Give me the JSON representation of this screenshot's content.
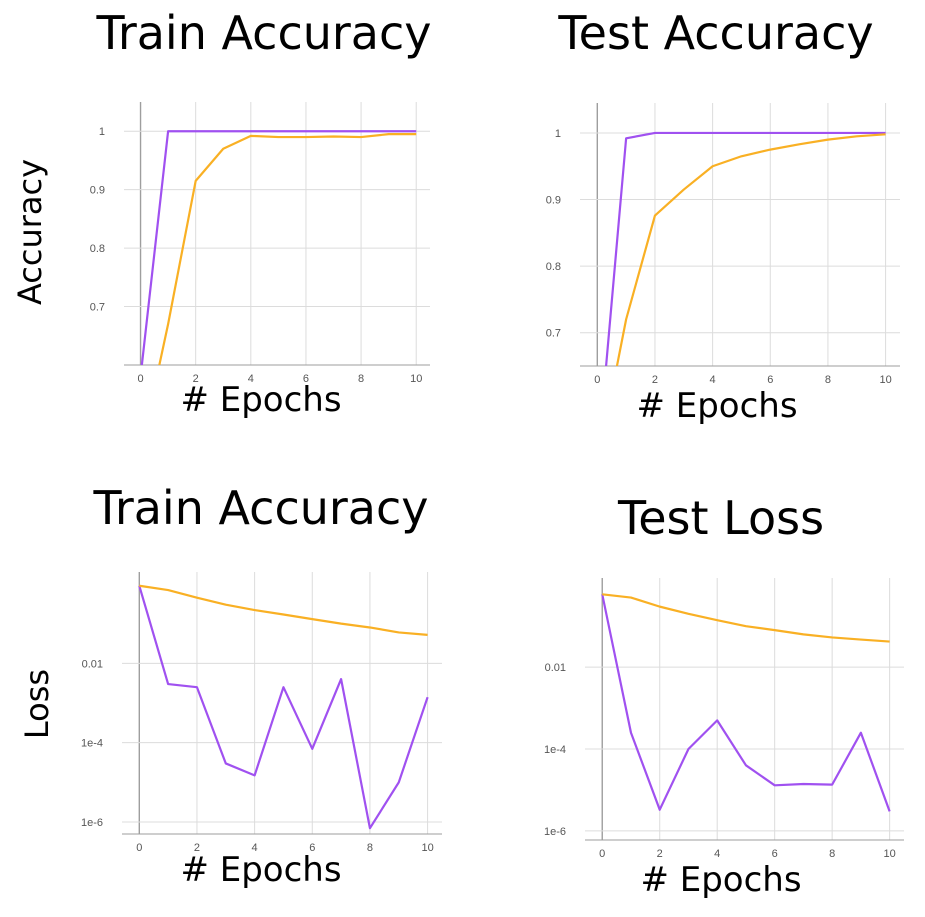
{
  "chart_data": [
    {
      "type": "line",
      "title": "Train Accuracy",
      "xlabel": "# Epochs",
      "ylabel": "Accuracy",
      "x_ticks": [
        "0",
        "2",
        "4",
        "6",
        "8",
        "10"
      ],
      "y_ticks": [
        "0.7",
        "0.8",
        "0.9",
        "1"
      ],
      "xlim": [
        -0.6,
        10.5
      ],
      "ylim": [
        0.6,
        1.05
      ],
      "x": [
        0,
        1,
        2,
        3,
        4,
        5,
        6,
        7,
        8,
        9,
        10
      ],
      "series": [
        {
          "color": "#a051f0",
          "values": [
            0.58,
            1.0,
            1.0,
            1.0,
            1.0,
            1.0,
            1.0,
            1.0,
            1.0,
            1.0,
            1.0
          ]
        },
        {
          "color": "#f9b024",
          "values": [
            0.45,
            0.67,
            0.915,
            0.97,
            0.992,
            0.99,
            0.99,
            0.991,
            0.99,
            0.995,
            0.995
          ]
        }
      ]
    },
    {
      "type": "line",
      "title": "Test Accuracy",
      "xlabel": "# Epochs",
      "ylabel": "",
      "x_ticks": [
        "0",
        "2",
        "4",
        "6",
        "8",
        "10"
      ],
      "y_ticks": [
        "0.7",
        "0.8",
        "0.9",
        "1"
      ],
      "xlim": [
        -0.6,
        10.5
      ],
      "ylim": [
        0.65,
        1.045
      ],
      "x": [
        0,
        1,
        2,
        3,
        4,
        5,
        6,
        7,
        8,
        9,
        10
      ],
      "series": [
        {
          "color": "#a051f0",
          "values": [
            0.5,
            0.992,
            1.0,
            1.0,
            1.0,
            1.0,
            1.0,
            1.0,
            1.0,
            1.0,
            1.0
          ]
        },
        {
          "color": "#f9b024",
          "values": [
            0.5,
            0.72,
            0.876,
            0.915,
            0.95,
            0.965,
            0.975,
            0.983,
            0.99,
            0.995,
            0.998
          ]
        }
      ]
    },
    {
      "type": "line",
      "title": "Train Accuracy",
      "xlabel": "# Epochs",
      "ylabel": "Loss",
      "y_scale": "log",
      "x_ticks": [
        "0",
        "2",
        "4",
        "6",
        "8",
        "10"
      ],
      "y_ticks": [
        "0.01",
        "1e-4",
        "1e-6"
      ],
      "xlim": [
        -0.6,
        10.5
      ],
      "ylim": [
        5e-07,
        2
      ],
      "x": [
        0,
        1,
        2,
        3,
        4,
        5,
        6,
        7,
        8,
        9,
        10
      ],
      "series": [
        {
          "color": "#a051f0",
          "values": [
            0.9,
            0.003,
            0.0025,
            3e-05,
            1.5e-05,
            0.0025,
            7e-05,
            0.004,
            7e-07,
            1e-05,
            0.0014
          ]
        },
        {
          "color": "#f9b024",
          "values": [
            0.9,
            0.7,
            0.45,
            0.3,
            0.22,
            0.17,
            0.13,
            0.1,
            0.08,
            0.06,
            0.052
          ]
        }
      ]
    },
    {
      "type": "line",
      "title": "Test Loss",
      "xlabel": "# Epochs",
      "ylabel": "",
      "y_scale": "log",
      "x_ticks": [
        "0",
        "2",
        "4",
        "6",
        "8",
        "10"
      ],
      "y_ticks": [
        "0.01",
        "1e-4",
        "1e-6"
      ],
      "xlim": [
        -0.6,
        10.5
      ],
      "ylim": [
        6e-07,
        1.5
      ],
      "x": [
        0,
        1,
        2,
        3,
        4,
        5,
        6,
        7,
        8,
        9,
        10
      ],
      "series": [
        {
          "color": "#a051f0",
          "values": [
            0.6,
            0.00025,
            3.3e-06,
            0.0001,
            0.0005,
            4e-05,
            1.3e-05,
            1.4e-05,
            1.35e-05,
            0.00025,
            3e-06
          ]
        },
        {
          "color": "#f9b024",
          "values": [
            0.6,
            0.5,
            0.3,
            0.2,
            0.14,
            0.1,
            0.08,
            0.063,
            0.053,
            0.047,
            0.042
          ]
        }
      ]
    }
  ]
}
